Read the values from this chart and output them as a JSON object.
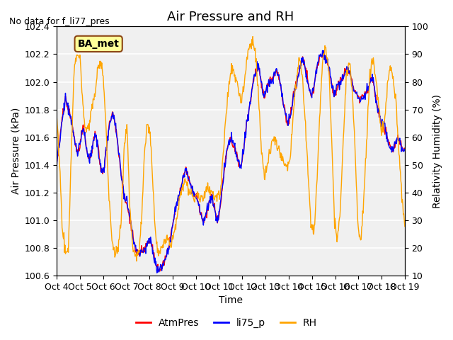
{
  "title": "Air Pressure and RH",
  "no_data_text": "No data for f_li77_pres",
  "station_label": "BA_met",
  "xlabel": "Time",
  "ylabel_left": "Air Pressure (kPa)",
  "ylabel_right": "Relativity Humidity (%)",
  "ylim_left": [
    100.6,
    102.4
  ],
  "ylim_right": [
    10,
    100
  ],
  "yticks_left": [
    100.6,
    100.8,
    101.0,
    101.2,
    101.4,
    101.6,
    101.8,
    102.0,
    102.2,
    102.4
  ],
  "yticks_right": [
    10,
    20,
    30,
    40,
    50,
    60,
    70,
    80,
    90,
    100
  ],
  "xtick_labels": [
    "Oct 4",
    "Oct 5",
    "Oct 6",
    "Oct 7",
    "Oct 8",
    "Oct 9",
    "Oct 10",
    "Oct 11",
    "Oct 12",
    "Oct 13",
    "Oct 14",
    "Oct 15",
    "Oct 16",
    "Oct 17",
    "Oct 18",
    "Oct 19"
  ],
  "color_atm": "#FF0000",
  "color_li75": "#0000FF",
  "color_rh": "#FFA500",
  "bg_color": "#E8E8E8",
  "plot_bg_color": "#F0F0F0",
  "legend_labels": [
    "AtmPres",
    "li75_p",
    "RH"
  ],
  "grid_color": "#FFFFFF",
  "title_fontsize": 13,
  "label_fontsize": 10,
  "tick_fontsize": 9
}
